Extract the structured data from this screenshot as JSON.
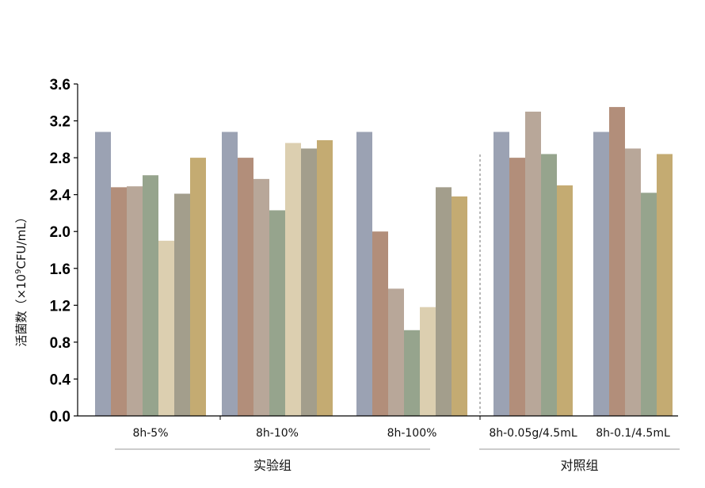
{
  "chart_data": {
    "type": "bar",
    "title": "",
    "xlabel": "",
    "ylabel_main": "活菌数（×10",
    "ylabel_sup": "9",
    "ylabel_tail": "CFU/mL）",
    "ylim": [
      0,
      3.6
    ],
    "yticks": [
      "0.0",
      "0.4",
      "0.8",
      "1.2",
      "1.6",
      "2.0",
      "2.4",
      "2.8",
      "3.2",
      "3.6"
    ],
    "grid": false,
    "legend": "none",
    "groups": [
      {
        "name": "实验组",
        "categories": [
          {
            "label": "8h-5%",
            "values": [
              3.08,
              2.48,
              2.49,
              2.61,
              1.9,
              2.41,
              2.8
            ],
            "colors": [
              "#9ba2b3",
              "#b28e7a",
              "#b8a799",
              "#96a48d",
              "#dccfb0",
              "#a39e8c",
              "#c4ab72"
            ]
          },
          {
            "label": "8h-10%",
            "values": [
              3.08,
              2.8,
              2.57,
              2.23,
              2.96,
              2.9,
              2.99
            ],
            "colors": [
              "#9ba2b3",
              "#b28e7a",
              "#b8a799",
              "#96a48d",
              "#dccfb0",
              "#a39e8c",
              "#c4ab72"
            ]
          },
          {
            "label": "8h-100%",
            "values": [
              3.08,
              2.0,
              1.38,
              0.93,
              1.18,
              2.48,
              2.38
            ],
            "colors": [
              "#9ba2b3",
              "#b28e7a",
              "#b8a799",
              "#96a48d",
              "#dccfb0",
              "#a39e8c",
              "#c4ab72"
            ]
          }
        ]
      },
      {
        "name": "对照组",
        "categories": [
          {
            "label": "8h-0.05g/4.5mL",
            "values": [
              3.08,
              2.8,
              3.3,
              2.84,
              2.5
            ],
            "colors": [
              "#9ba2b3",
              "#b28e7a",
              "#b8a799",
              "#96a48d",
              "#c4ab72"
            ]
          },
          {
            "label": "8h-0.1/4.5mL",
            "values": [
              3.08,
              3.35,
              2.9,
              2.42,
              2.84
            ],
            "colors": [
              "#9ba2b3",
              "#b28e7a",
              "#b8a799",
              "#96a48d",
              "#c4ab72"
            ]
          }
        ]
      }
    ]
  }
}
